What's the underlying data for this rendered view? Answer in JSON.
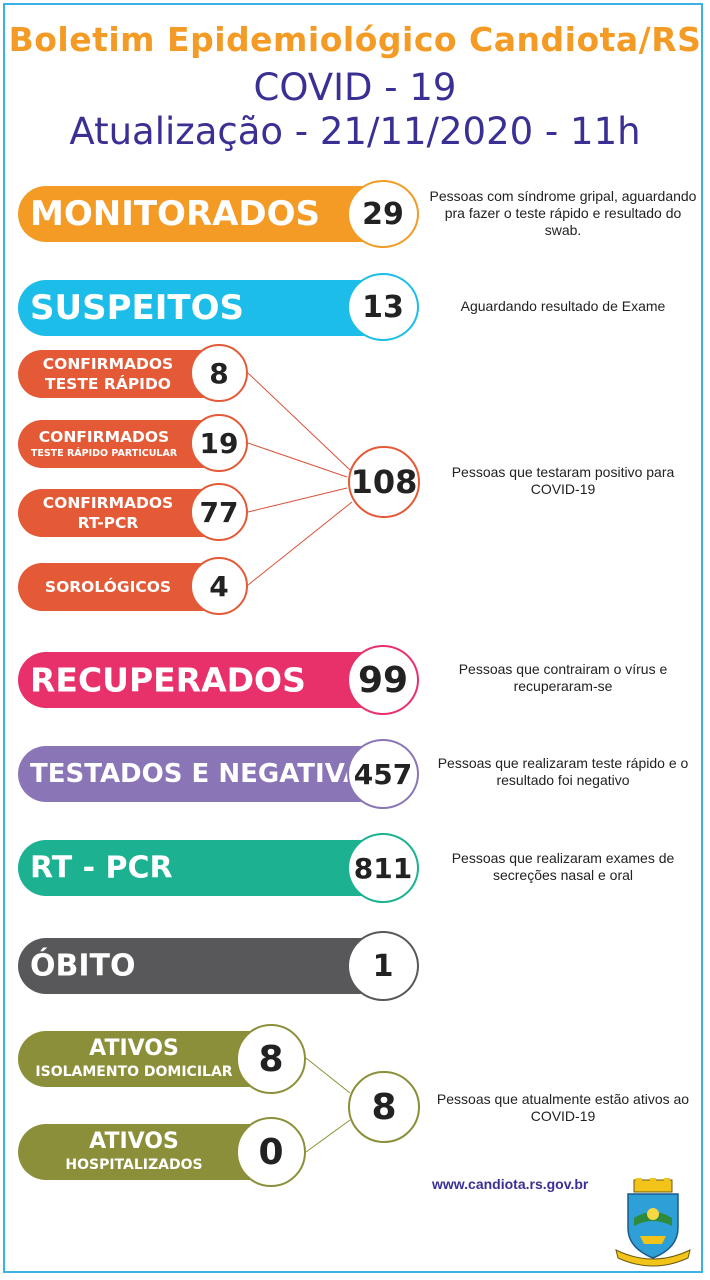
{
  "header": {
    "title": "Boletim Epidemiológico Candiota/RS",
    "subtitle": "COVID - 19",
    "update": "Atualização - 21/11/2020 - 11h"
  },
  "colors": {
    "monitorados": "#f39b25",
    "suspeitos": "#1cbde9",
    "confirmados": "#e45a37",
    "recuperados": "#e8316a",
    "testados": "#8a75b6",
    "rtpcr": "#1bb191",
    "obito": "#58585a",
    "ativos": "#8c8f39"
  },
  "rows": {
    "monitorados": {
      "label": "MONITORADOS",
      "value": "29",
      "desc": "Pessoas com síndrome gripal, aguardando pra fazer o teste rápido e resultado do swab."
    },
    "suspeitos": {
      "label": "SUSPEITOS",
      "value": "13",
      "desc": "Aguardando resultado de Exame"
    },
    "recuperados": {
      "label": "RECUPERADOS",
      "value": "99",
      "desc": "Pessoas que contrairam o vírus e recuperaram-se"
    },
    "testados": {
      "label": "TESTADOS E NEGATIVADOS",
      "value": "457",
      "desc": "Pessoas que realizaram teste rápido e o resultado foi negativo"
    },
    "rtpcr": {
      "label": "RT - PCR",
      "value": "811",
      "desc": "Pessoas que realizaram exames de secreções nasal e oral"
    },
    "obito": {
      "label": "ÓBITO",
      "value": "1"
    }
  },
  "confirmados": {
    "items": [
      {
        "line1": "CONFIRMADOS",
        "line2": "TESTE RÁPIDO",
        "value": "8"
      },
      {
        "line1": "CONFIRMADOS",
        "line2": "TESTE RÁPIDO PARTICULAR",
        "value": "19"
      },
      {
        "line1": "CONFIRMADOS",
        "line2": "RT-PCR",
        "value": "77"
      },
      {
        "line1": "SOROLÓGICOS",
        "line2": "",
        "value": "4"
      }
    ],
    "total": "108",
    "desc": "Pessoas que testaram positivo para COVID-19"
  },
  "ativos": {
    "items": [
      {
        "line1": "ATIVOS",
        "line2": "ISOLAMENTO DOMICILAR",
        "value": "8"
      },
      {
        "line1": "ATIVOS",
        "line2": "HOSPITALIZADOS",
        "value": "0"
      }
    ],
    "total": "8",
    "desc": "Pessoas que atualmente estão ativos ao COVID-19"
  },
  "footer": {
    "url": "www.candiota.rs.gov.br",
    "logo_icon": "candiota-coat-of-arms-icon"
  }
}
